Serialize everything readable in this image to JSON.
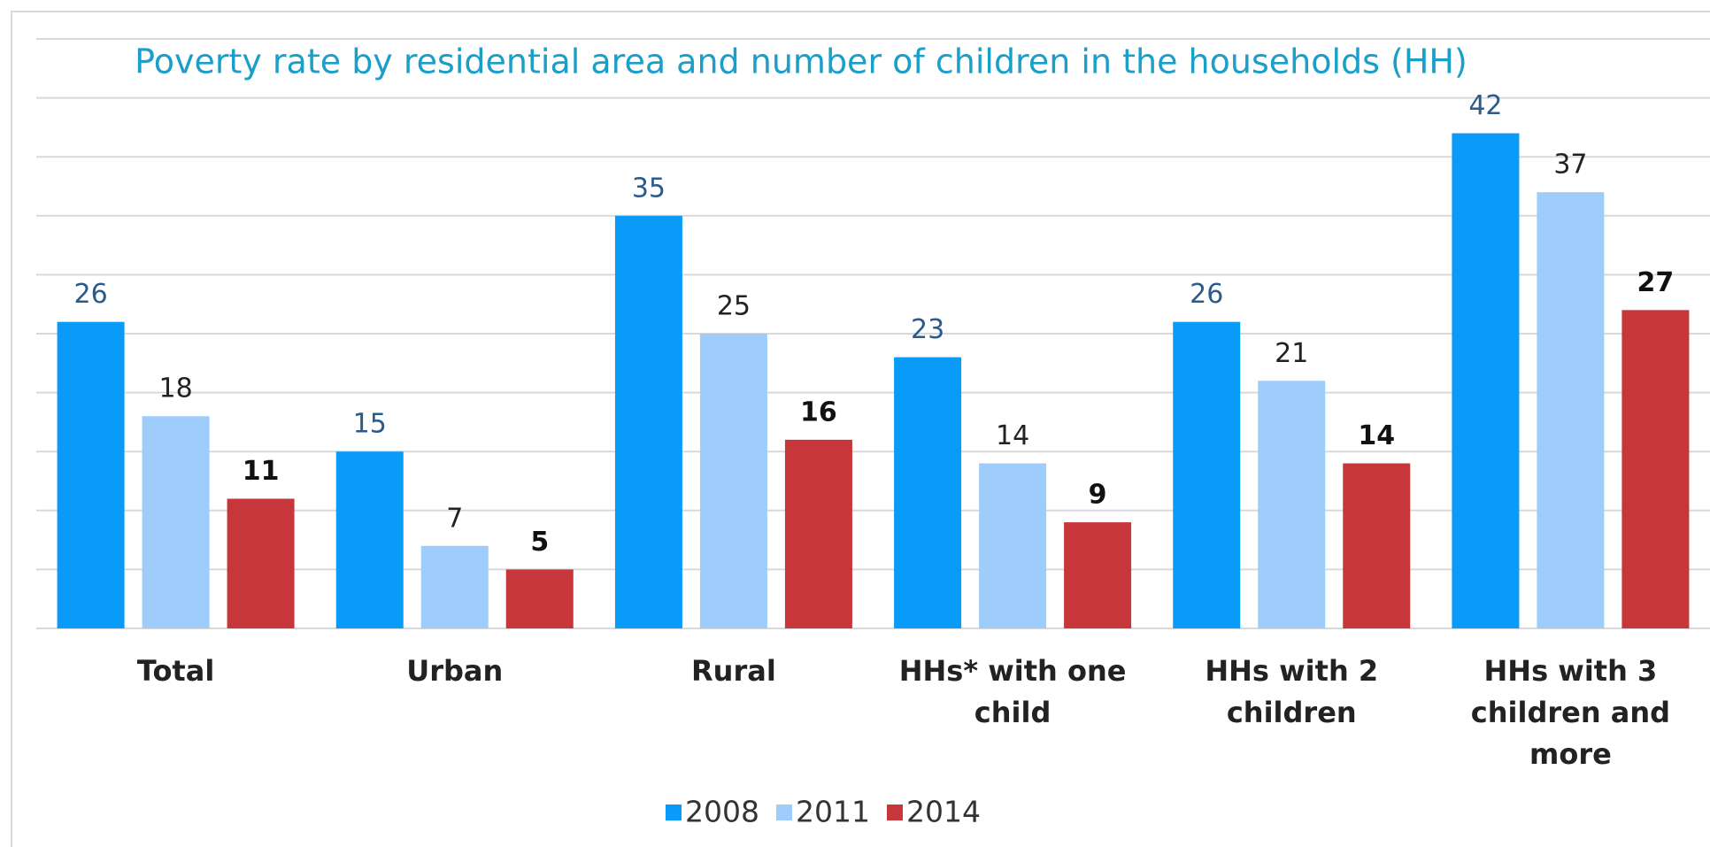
{
  "chart_data": {
    "type": "bar",
    "title": "Poverty rate by residential area and number of children in the households (HH)",
    "categories": [
      "Total",
      "Urban",
      "Rural",
      "HHs* with one child",
      "HHs with 2 children",
      "HHs with 3 children and more"
    ],
    "series": [
      {
        "name": "2008",
        "color": "#0a9af7",
        "label_color": "#2b5a8c",
        "label_bold": false,
        "values": [
          26,
          15,
          35,
          23,
          26,
          42
        ]
      },
      {
        "name": "2011",
        "color": "#9ecdfb",
        "label_color": "#222222",
        "label_bold": false,
        "values": [
          18,
          7,
          25,
          14,
          21,
          37
        ]
      },
      {
        "name": "2014",
        "color": "#c7363a",
        "label_color": "#111111",
        "label_bold": true,
        "values": [
          11,
          5,
          16,
          9,
          14,
          27
        ]
      }
    ],
    "ylim": [
      0,
      50
    ],
    "yticks": [
      0,
      5,
      10,
      15,
      20,
      25,
      30,
      35,
      40,
      45,
      50
    ],
    "grid": true,
    "legend": "bottom"
  }
}
